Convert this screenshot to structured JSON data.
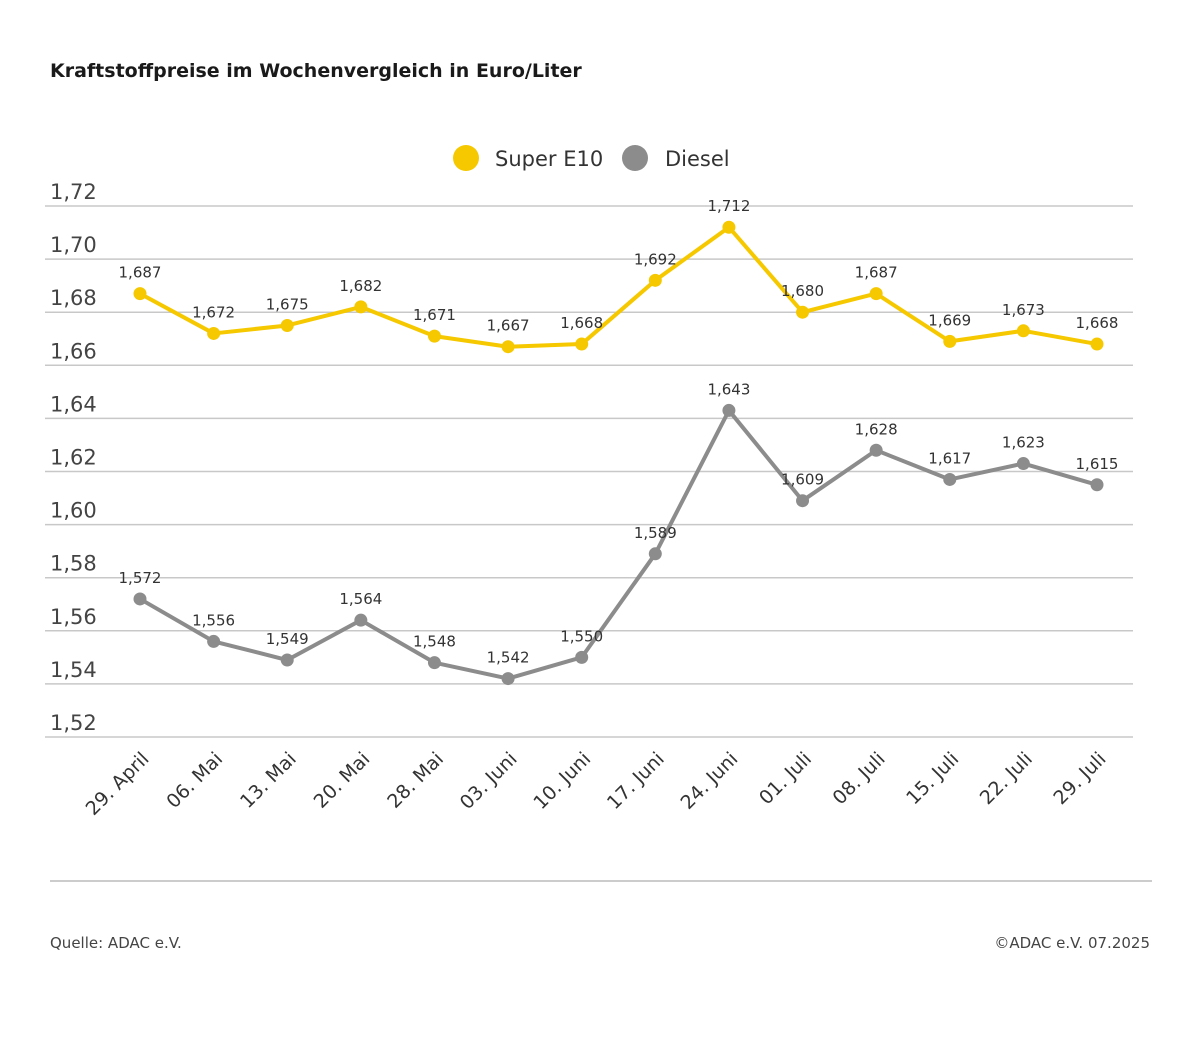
{
  "title": "Kraftstoffpreise im Wochenvergleich in Euro/Liter",
  "footer": {
    "source": "Quelle: ADAC e.V.",
    "copyright": "©ADAC e.V. 07.2025"
  },
  "colors": {
    "super_e10": "#f5c800",
    "diesel": "#8c8c8c",
    "grid": "#c8c8c8"
  },
  "chart_data": {
    "type": "line",
    "title": "Kraftstoffpreise im Wochenvergleich in Euro/Liter",
    "xlabel": "",
    "ylabel": "",
    "categories": [
      "29. April",
      "06. Mai",
      "13. Mai",
      "20. Mai",
      "28. Mai",
      "03. Juni",
      "10. Juni",
      "17. Juni",
      "24. Juni",
      "01. Juli",
      "08. Juli",
      "15. Juli",
      "22. Juli",
      "29. Juli"
    ],
    "ylim": [
      1.52,
      1.72
    ],
    "yticks": [
      1.52,
      1.54,
      1.56,
      1.58,
      1.6,
      1.62,
      1.64,
      1.66,
      1.68,
      1.7,
      1.72
    ],
    "ytick_labels": [
      "1,52",
      "1,54",
      "1,56",
      "1,58",
      "1,60",
      "1,62",
      "1,64",
      "1,66",
      "1,68",
      "1,70",
      "1,72"
    ],
    "grid": true,
    "legend_position": "top-center",
    "series": [
      {
        "name": "Super E10",
        "color": "#f5c800",
        "values": [
          1.687,
          1.672,
          1.675,
          1.682,
          1.671,
          1.667,
          1.668,
          1.692,
          1.712,
          1.68,
          1.687,
          1.669,
          1.673,
          1.668
        ],
        "labels": [
          "1,687",
          "1,672",
          "1,675",
          "1,682",
          "1,671",
          "1,667",
          "1,668",
          "1,692",
          "1,712",
          "1,680",
          "1,687",
          "1,669",
          "1,673",
          "1,668"
        ]
      },
      {
        "name": "Diesel",
        "color": "#8c8c8c",
        "values": [
          1.572,
          1.556,
          1.549,
          1.564,
          1.548,
          1.542,
          1.55,
          1.589,
          1.643,
          1.609,
          1.628,
          1.617,
          1.623,
          1.615
        ],
        "labels": [
          "1,572",
          "1,556",
          "1,549",
          "1,564",
          "1,548",
          "1,542",
          "1,550",
          "1,589",
          "1,643",
          "1,609",
          "1,628",
          "1,617",
          "1,623",
          "1,615"
        ]
      }
    ]
  }
}
